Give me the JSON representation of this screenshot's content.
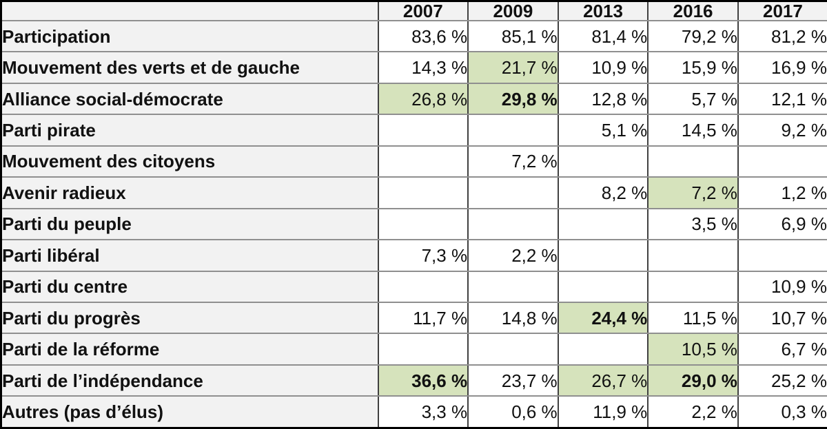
{
  "chart_data": {
    "type": "table",
    "columns": [
      "",
      "2007",
      "2009",
      "2013",
      "2016",
      "2017"
    ],
    "rows": [
      {
        "label": "Participation",
        "values": [
          "83,6 %",
          "85,1 %",
          "81,4 %",
          "79,2 %",
          "81,2 %"
        ],
        "highlight": [],
        "bold": []
      },
      {
        "label": "Mouvement des verts et de gauche",
        "values": [
          "14,3 %",
          "21,7 %",
          "10,9 %",
          "15,9 %",
          "16,9 %"
        ],
        "highlight": [
          1
        ],
        "bold": []
      },
      {
        "label": "Alliance social-démocrate",
        "values": [
          "26,8 %",
          "29,8 %",
          "12,8 %",
          "5,7 %",
          "12,1 %"
        ],
        "highlight": [
          0,
          1
        ],
        "bold": [
          1
        ]
      },
      {
        "label": "Parti pirate",
        "values": [
          "",
          "",
          "5,1 %",
          "14,5 %",
          "9,2 %"
        ],
        "highlight": [],
        "bold": []
      },
      {
        "label": "Mouvement des citoyens",
        "values": [
          "",
          "7,2 %",
          "",
          "",
          ""
        ],
        "highlight": [],
        "bold": []
      },
      {
        "label": "Avenir radieux",
        "values": [
          "",
          "",
          "8,2 %",
          "7,2 %",
          "1,2 %"
        ],
        "highlight": [
          3
        ],
        "bold": []
      },
      {
        "label": "Parti du peuple",
        "values": [
          "",
          "",
          "",
          "3,5 %",
          "6,9 %"
        ],
        "highlight": [],
        "bold": []
      },
      {
        "label": "Parti libéral",
        "values": [
          "7,3 %",
          "2,2 %",
          "",
          "",
          ""
        ],
        "highlight": [],
        "bold": []
      },
      {
        "label": "Parti du centre",
        "values": [
          "",
          "",
          "",
          "",
          "10,9 %"
        ],
        "highlight": [],
        "bold": []
      },
      {
        "label": "Parti du progrès",
        "values": [
          "11,7 %",
          "14,8 %",
          "24,4 %",
          "11,5 %",
          "10,7 %"
        ],
        "highlight": [
          2
        ],
        "bold": [
          2
        ]
      },
      {
        "label": "Parti de la réforme",
        "values": [
          "",
          "",
          "",
          "10,5 %",
          "6,7 %"
        ],
        "highlight": [
          3
        ],
        "bold": []
      },
      {
        "label": "Parti de l’indépendance",
        "values": [
          "36,6 %",
          "23,7 %",
          "26,7 %",
          "29,0 %",
          "25,2 %"
        ],
        "highlight": [
          0,
          2,
          3
        ],
        "bold": [
          0,
          3
        ]
      },
      {
        "label": "Autres (pas d’élus)",
        "values": [
          "3,3 %",
          "0,6 %",
          "11,9 %",
          "2,2 %",
          "0,3 %"
        ],
        "highlight": [],
        "bold": []
      }
    ]
  },
  "colors": {
    "highlight_green": "#d6e3bc",
    "header_bg": "#f2f2f2",
    "label_bg": "#f2f2f2",
    "cell_bg": "#ffffff",
    "outer_border": "#000000",
    "inner_vertical_border": "#404040",
    "inner_horizontal_border": "#8f8f8f",
    "text": "#111111"
  }
}
